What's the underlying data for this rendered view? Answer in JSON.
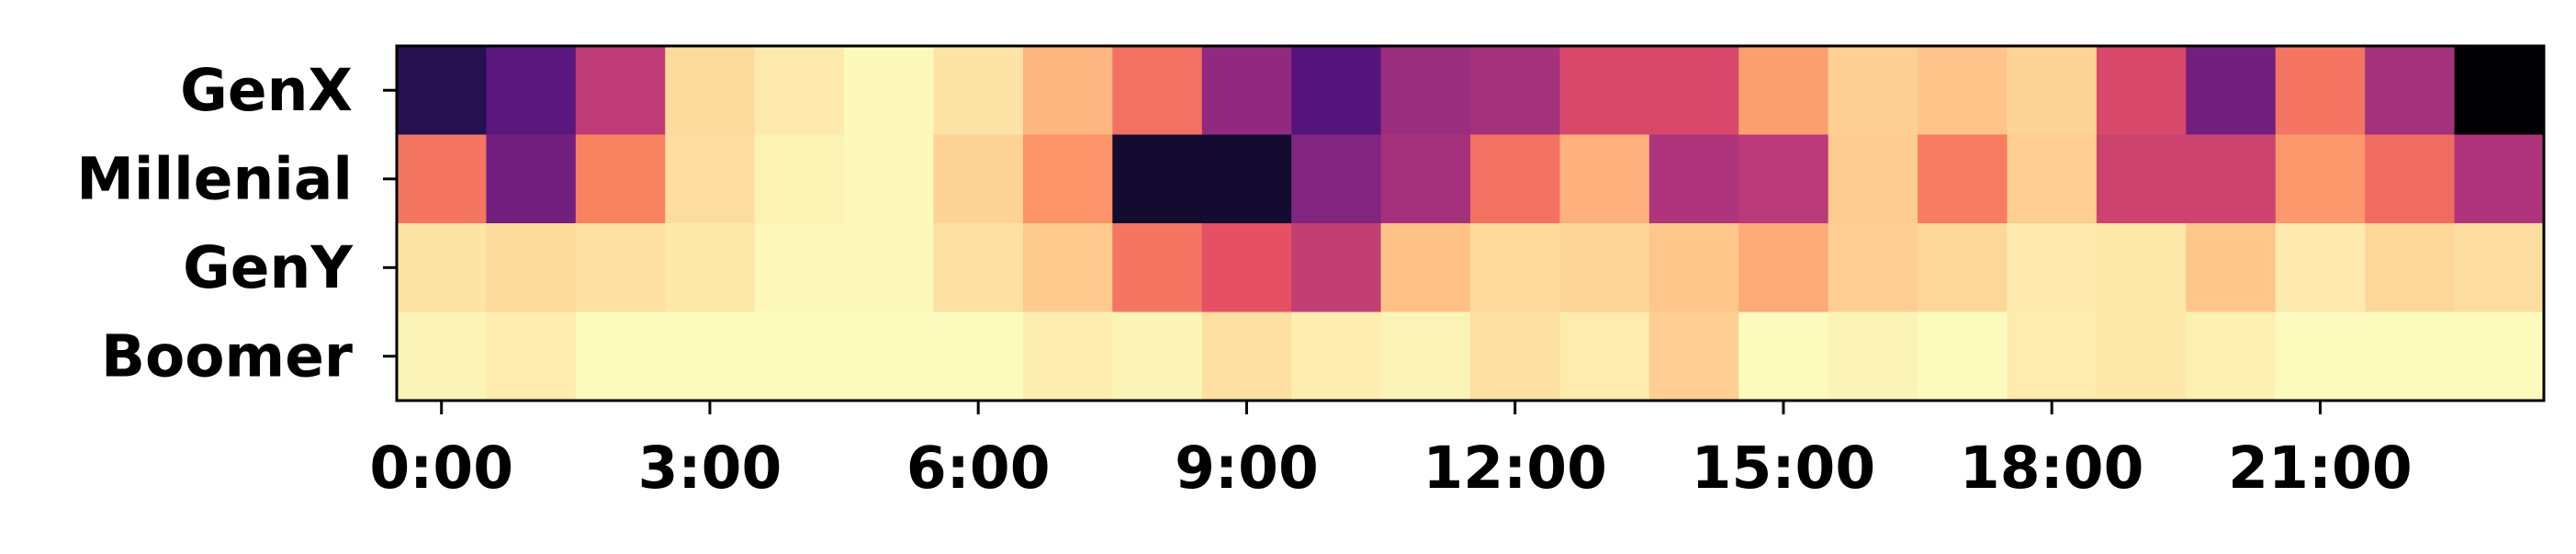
{
  "chart_data": {
    "type": "heatmap",
    "colormap": "magma",
    "grid": false,
    "y_categories": [
      "GenX",
      "Millenial",
      "GenY",
      "Boomer"
    ],
    "x_tick_labels": [
      "0:00",
      "3:00",
      "6:00",
      "9:00",
      "12:00",
      "15:00",
      "18:00",
      "21:00"
    ],
    "x_tick_hours": [
      0,
      3,
      6,
      9,
      12,
      15,
      18,
      21
    ],
    "hours": [
      0,
      1,
      2,
      3,
      4,
      5,
      6,
      7,
      8,
      9,
      10,
      11,
      12,
      13,
      14,
      15,
      16,
      17,
      18,
      19,
      20,
      21,
      22,
      23
    ],
    "value_range": [
      0,
      1
    ],
    "values": [
      [
        0.12,
        0.22,
        0.42,
        0.82,
        0.9,
        0.98,
        0.86,
        0.68,
        0.56,
        0.33,
        0.21,
        0.35,
        0.37,
        0.47,
        0.47,
        0.64,
        0.77,
        0.71,
        0.78,
        0.47,
        0.27,
        0.57,
        0.37,
        0.0
      ],
      [
        0.57,
        0.27,
        0.59,
        0.83,
        0.94,
        0.98,
        0.78,
        0.62,
        0.07,
        0.07,
        0.3,
        0.37,
        0.56,
        0.67,
        0.39,
        0.41,
        0.75,
        0.58,
        0.76,
        0.45,
        0.45,
        0.63,
        0.55,
        0.39
      ],
      [
        0.86,
        0.82,
        0.85,
        0.88,
        0.98,
        0.98,
        0.85,
        0.74,
        0.57,
        0.5,
        0.43,
        0.7,
        0.81,
        0.79,
        0.72,
        0.66,
        0.76,
        0.8,
        0.9,
        0.88,
        0.72,
        0.9,
        0.8,
        0.83
      ],
      [
        0.95,
        0.91,
        0.99,
        0.99,
        0.99,
        0.99,
        0.99,
        0.92,
        0.95,
        0.84,
        0.92,
        0.95,
        0.84,
        0.91,
        0.76,
        0.99,
        0.95,
        0.99,
        0.91,
        0.89,
        0.93,
        0.99,
        0.99,
        0.99
      ]
    ]
  }
}
